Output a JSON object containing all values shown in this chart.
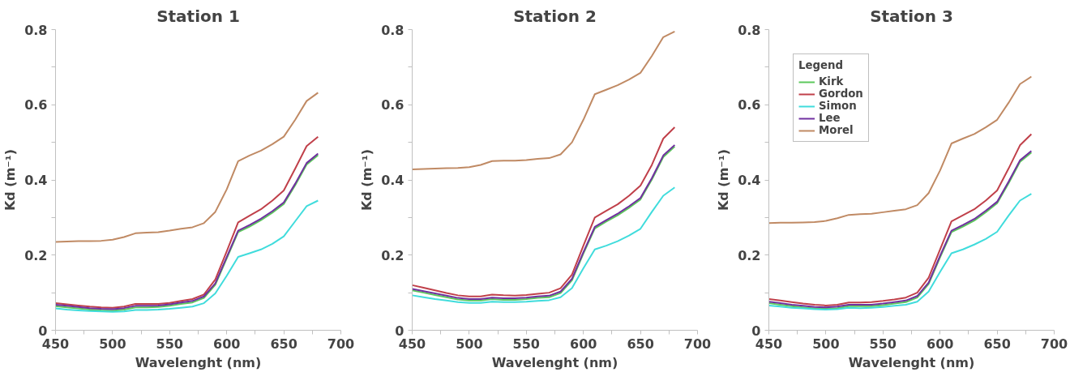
{
  "chart_data": [
    {
      "type": "line",
      "title": "Station 1",
      "xlabel": "Wavelenght (nm)",
      "ylabel": "Kd (m⁻¹)",
      "xlim": [
        450,
        700
      ],
      "ylim": [
        0,
        0.8
      ],
      "grid": false,
      "legend": false,
      "marker": "none",
      "line_style": "solid",
      "xticks": [
        450,
        {
          "value": 475,
          "label": null
        },
        500,
        {
          "value": 525,
          "label": null
        },
        550,
        {
          "value": 575,
          "label": null
        },
        600,
        {
          "value": 625,
          "label": null
        },
        650,
        {
          "value": 675,
          "label": null
        },
        700
      ],
      "yticks": [
        0,
        {
          "value": 0.1,
          "label": null
        },
        0.2,
        {
          "value": 0.3,
          "label": null
        },
        0.4,
        {
          "value": 0.5,
          "label": null
        },
        0.6,
        {
          "value": 0.7,
          "label": null
        },
        0.8
      ],
      "x": [
        450,
        460,
        470,
        480,
        490,
        500,
        510,
        520,
        530,
        540,
        550,
        560,
        570,
        580,
        590,
        600,
        610,
        620,
        630,
        640,
        650,
        660,
        670,
        680
      ],
      "series": [
        {
          "color": "#5cc85c",
          "values": [
            0.064,
            0.061,
            0.058,
            0.055,
            0.053,
            0.052,
            0.055,
            0.061,
            0.061,
            0.062,
            0.065,
            0.07,
            0.074,
            0.086,
            0.121,
            0.191,
            0.261,
            0.276,
            0.293,
            0.313,
            0.336,
            0.386,
            0.441,
            0.466
          ]
        },
        {
          "color": "#c0404a",
          "values": [
            0.072,
            0.069,
            0.066,
            0.063,
            0.061,
            0.06,
            0.063,
            0.07,
            0.07,
            0.07,
            0.073,
            0.078,
            0.083,
            0.095,
            0.135,
            0.21,
            0.287,
            0.305,
            0.322,
            0.345,
            0.372,
            0.43,
            0.49,
            0.515
          ]
        },
        {
          "color": "#40dcdc",
          "values": [
            0.058,
            0.055,
            0.053,
            0.051,
            0.05,
            0.049,
            0.05,
            0.054,
            0.054,
            0.055,
            0.057,
            0.06,
            0.063,
            0.072,
            0.098,
            0.145,
            0.195,
            0.205,
            0.215,
            0.23,
            0.25,
            0.29,
            0.33,
            0.345
          ]
        },
        {
          "color": "#7030a0",
          "values": [
            0.068,
            0.065,
            0.062,
            0.059,
            0.057,
            0.056,
            0.059,
            0.065,
            0.065,
            0.066,
            0.069,
            0.074,
            0.078,
            0.09,
            0.125,
            0.195,
            0.265,
            0.28,
            0.297,
            0.317,
            0.34,
            0.39,
            0.445,
            0.47
          ]
        },
        {
          "color": "#c08a64",
          "values": [
            0.235,
            0.236,
            0.237,
            0.237,
            0.238,
            0.241,
            0.248,
            0.258,
            0.26,
            0.261,
            0.265,
            0.27,
            0.274,
            0.285,
            0.315,
            0.375,
            0.45,
            0.465,
            0.478,
            0.495,
            0.515,
            0.56,
            0.61,
            0.632
          ]
        }
      ]
    },
    {
      "type": "line",
      "title": "Station 2",
      "xlabel": "Wavelenght (nm)",
      "ylabel": "Kd (m⁻¹)",
      "xlim": [
        450,
        700
      ],
      "ylim": [
        0,
        0.8
      ],
      "grid": false,
      "legend": false,
      "marker": "none",
      "line_style": "solid",
      "xticks": [
        450,
        {
          "value": 475,
          "label": null
        },
        500,
        {
          "value": 525,
          "label": null
        },
        550,
        {
          "value": 575,
          "label": null
        },
        600,
        {
          "value": 625,
          "label": null
        },
        650,
        {
          "value": 675,
          "label": null
        },
        700
      ],
      "yticks": [
        0,
        {
          "value": 0.1,
          "label": null
        },
        0.2,
        {
          "value": 0.3,
          "label": null
        },
        0.4,
        {
          "value": 0.5,
          "label": null
        },
        0.6,
        {
          "value": 0.7,
          "label": null
        },
        0.8
      ],
      "x": [
        450,
        460,
        470,
        480,
        490,
        500,
        510,
        520,
        530,
        540,
        550,
        560,
        570,
        580,
        590,
        600,
        610,
        620,
        630,
        640,
        650,
        660,
        670,
        680
      ],
      "series": [
        {
          "color": "#5cc85c",
          "values": [
            0.106,
            0.1,
            0.094,
            0.088,
            0.082,
            0.079,
            0.079,
            0.083,
            0.081,
            0.081,
            0.083,
            0.086,
            0.088,
            0.099,
            0.133,
            0.204,
            0.271,
            0.289,
            0.306,
            0.326,
            0.348,
            0.401,
            0.461,
            0.489
          ]
        },
        {
          "color": "#c0404a",
          "values": [
            0.12,
            0.113,
            0.106,
            0.099,
            0.093,
            0.09,
            0.09,
            0.095,
            0.093,
            0.092,
            0.094,
            0.097,
            0.1,
            0.112,
            0.148,
            0.225,
            0.3,
            0.318,
            0.335,
            0.358,
            0.385,
            0.44,
            0.51,
            0.54
          ]
        },
        {
          "color": "#40dcdc",
          "values": [
            0.093,
            0.088,
            0.083,
            0.079,
            0.075,
            0.073,
            0.073,
            0.076,
            0.075,
            0.075,
            0.076,
            0.078,
            0.08,
            0.088,
            0.112,
            0.165,
            0.215,
            0.225,
            0.237,
            0.252,
            0.27,
            0.315,
            0.358,
            0.38
          ]
        },
        {
          "color": "#7030a0",
          "values": [
            0.11,
            0.104,
            0.098,
            0.092,
            0.086,
            0.083,
            0.083,
            0.087,
            0.085,
            0.085,
            0.087,
            0.09,
            0.092,
            0.103,
            0.137,
            0.208,
            0.275,
            0.293,
            0.31,
            0.33,
            0.352,
            0.405,
            0.465,
            0.493
          ]
        },
        {
          "color": "#c08a64",
          "values": [
            0.428,
            0.429,
            0.43,
            0.431,
            0.432,
            0.434,
            0.44,
            0.45,
            0.451,
            0.451,
            0.453,
            0.456,
            0.458,
            0.468,
            0.5,
            0.56,
            0.628,
            0.64,
            0.652,
            0.667,
            0.685,
            0.73,
            0.78,
            0.795
          ]
        }
      ]
    },
    {
      "type": "line",
      "title": "Station 3",
      "xlabel": "Wavelenght (nm)",
      "ylabel": "Kd (m⁻¹)",
      "xlim": [
        450,
        700
      ],
      "ylim": [
        0,
        0.8
      ],
      "grid": false,
      "legend": "top left",
      "legend_title": "Legend",
      "marker": "none",
      "line_style": "solid",
      "xticks": [
        450,
        {
          "value": 475,
          "label": null
        },
        500,
        {
          "value": 525,
          "label": null
        },
        550,
        {
          "value": 575,
          "label": null
        },
        600,
        {
          "value": 625,
          "label": null
        },
        650,
        {
          "value": 675,
          "label": null
        },
        700
      ],
      "yticks": [
        0,
        {
          "value": 0.1,
          "label": null
        },
        0.2,
        {
          "value": 0.3,
          "label": null
        },
        0.4,
        {
          "value": 0.5,
          "label": null
        },
        0.6,
        {
          "value": 0.7,
          "label": null
        },
        0.8
      ],
      "x": [
        450,
        460,
        470,
        480,
        490,
        500,
        510,
        520,
        530,
        540,
        550,
        560,
        570,
        580,
        590,
        600,
        610,
        620,
        630,
        640,
        650,
        660,
        670,
        680
      ],
      "series": [
        {
          "name": "Kirk",
          "color": "#5cc85c",
          "values": [
            0.072,
            0.068,
            0.064,
            0.061,
            0.058,
            0.057,
            0.059,
            0.064,
            0.064,
            0.064,
            0.067,
            0.071,
            0.075,
            0.087,
            0.123,
            0.194,
            0.261,
            0.276,
            0.292,
            0.314,
            0.338,
            0.391,
            0.448,
            0.473
          ]
        },
        {
          "name": "Gordon",
          "color": "#c0404a",
          "values": [
            0.083,
            0.079,
            0.075,
            0.071,
            0.068,
            0.066,
            0.068,
            0.074,
            0.074,
            0.075,
            0.078,
            0.082,
            0.087,
            0.1,
            0.14,
            0.215,
            0.29,
            0.306,
            0.322,
            0.345,
            0.372,
            0.43,
            0.492,
            0.522
          ]
        },
        {
          "name": "Simon",
          "color": "#40dcdc",
          "values": [
            0.066,
            0.063,
            0.06,
            0.058,
            0.056,
            0.055,
            0.056,
            0.06,
            0.059,
            0.06,
            0.062,
            0.065,
            0.068,
            0.076,
            0.103,
            0.155,
            0.205,
            0.215,
            0.228,
            0.243,
            0.262,
            0.305,
            0.345,
            0.363
          ]
        },
        {
          "name": "Lee",
          "color": "#7030a0",
          "values": [
            0.076,
            0.072,
            0.068,
            0.065,
            0.062,
            0.061,
            0.063,
            0.068,
            0.068,
            0.068,
            0.071,
            0.075,
            0.079,
            0.091,
            0.127,
            0.198,
            0.265,
            0.28,
            0.296,
            0.318,
            0.342,
            0.395,
            0.452,
            0.477
          ]
        },
        {
          "name": "Morel",
          "color": "#c08a64",
          "values": [
            0.285,
            0.286,
            0.286,
            0.287,
            0.288,
            0.291,
            0.298,
            0.307,
            0.309,
            0.31,
            0.314,
            0.318,
            0.322,
            0.333,
            0.365,
            0.425,
            0.497,
            0.51,
            0.522,
            0.54,
            0.56,
            0.605,
            0.655,
            0.675
          ]
        }
      ]
    }
  ]
}
